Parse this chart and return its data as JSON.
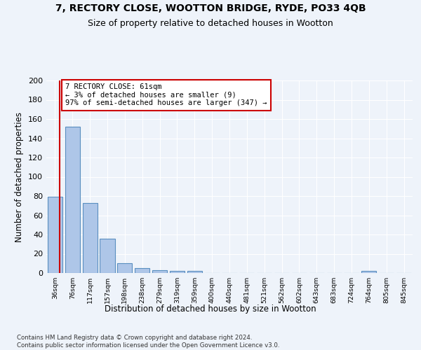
{
  "title1": "7, RECTORY CLOSE, WOOTTON BRIDGE, RYDE, PO33 4QB",
  "title2": "Size of property relative to detached houses in Wootton",
  "xlabel": "Distribution of detached houses by size in Wootton",
  "ylabel": "Number of detached properties",
  "bar_labels": [
    "36sqm",
    "76sqm",
    "117sqm",
    "157sqm",
    "198sqm",
    "238sqm",
    "279sqm",
    "319sqm",
    "359sqm",
    "400sqm",
    "440sqm",
    "481sqm",
    "521sqm",
    "562sqm",
    "602sqm",
    "643sqm",
    "683sqm",
    "724sqm",
    "764sqm",
    "805sqm",
    "845sqm"
  ],
  "bar_values": [
    79,
    152,
    73,
    36,
    10,
    5,
    3,
    2,
    2,
    0,
    0,
    0,
    0,
    0,
    0,
    0,
    0,
    0,
    2,
    0,
    0
  ],
  "bar_color": "#aec6e8",
  "bar_edge_color": "#5a8fc0",
  "highlight_line_color": "#cc0000",
  "annotation_text": "7 RECTORY CLOSE: 61sqm\n← 3% of detached houses are smaller (9)\n97% of semi-detached houses are larger (347) →",
  "annotation_box_color": "#cc0000",
  "ylim": [
    0,
    200
  ],
  "yticks": [
    0,
    20,
    40,
    60,
    80,
    100,
    120,
    140,
    160,
    180,
    200
  ],
  "footnote": "Contains HM Land Registry data © Crown copyright and database right 2024.\nContains public sector information licensed under the Open Government Licence v3.0.",
  "bg_color": "#eef3fa",
  "grid_color": "#ffffff",
  "title1_fontsize": 10,
  "title2_fontsize": 9,
  "xlabel_fontsize": 8.5,
  "ylabel_fontsize": 8.5
}
